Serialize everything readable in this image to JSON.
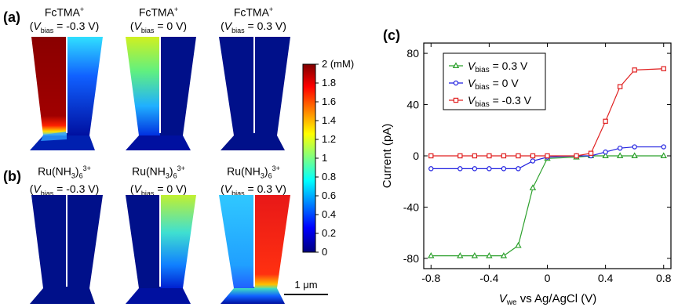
{
  "panels": {
    "a": {
      "label": "(a)",
      "species_base": "FcTMA",
      "species_sup": "+"
    },
    "b": {
      "label": "(b)",
      "species_base": "Ru(NH",
      "species_sub": "3",
      "species_close": ")",
      "species_sub2": "6",
      "species_sup": "3+"
    },
    "c": {
      "label": "(c)"
    }
  },
  "map_columns": [
    {
      "bias_var": "V",
      "bias_sub": "bias",
      "bias_value": " = -0.3 V)"
    },
    {
      "bias_var": "V",
      "bias_sub": "bias",
      "bias_value": " = 0 V)"
    },
    {
      "bias_var": "V",
      "bias_sub": "bias",
      "bias_value": " = 0.3 V)"
    }
  ],
  "colorbar": {
    "unit_label": "(mM)",
    "ticks": [
      "2",
      "1.8",
      "1.6",
      "1.4",
      "1.2",
      "1",
      "0.8",
      "0.6",
      "0.4",
      "0.2",
      "0"
    ],
    "colors": [
      "#7f0000",
      "#ff0000",
      "#ffff00",
      "#00ffff",
      "#0000ff",
      "#00007f"
    ]
  },
  "scale_bar": {
    "label": "1 μm"
  },
  "chart_data": {
    "type": "line",
    "title": "",
    "xlabel_var": "V",
    "xlabel_sub": "we",
    "xlabel_rest": " vs Ag/AgCl (V)",
    "ylabel": "Current (pA)",
    "xlim": [
      -0.85,
      0.85
    ],
    "ylim": [
      -88,
      88
    ],
    "xticks": [
      -0.8,
      -0.4,
      0,
      0.4,
      0.8
    ],
    "xtick_labels": [
      "-0.8",
      "-0.4",
      "0",
      "0.4",
      "0.8"
    ],
    "yticks": [
      -80,
      -40,
      0,
      40,
      80
    ],
    "ytick_labels": [
      "-80",
      "-40",
      "0",
      "40",
      "80"
    ],
    "legend_position": "top-left",
    "x": [
      -0.8,
      -0.6,
      -0.5,
      -0.4,
      -0.3,
      -0.2,
      -0.1,
      0,
      0.2,
      0.3,
      0.4,
      0.5,
      0.6,
      0.8
    ],
    "series": [
      {
        "name_var": "V",
        "name_sub": "bias",
        "name_rest": " = 0.3 V",
        "color": "#2ca02c",
        "marker": "triangle",
        "values": [
          -78,
          -78,
          -78,
          -78,
          -78,
          -70,
          -25,
          -2,
          -1,
          0,
          0,
          0,
          0,
          0
        ]
      },
      {
        "name_var": "V",
        "name_sub": "bias",
        "name_rest": " = 0 V",
        "color": "#1f1fe0",
        "marker": "circle",
        "values": [
          -10,
          -10,
          -10,
          -10,
          -10,
          -10,
          -4,
          -1,
          0,
          0,
          3,
          6,
          7,
          7
        ]
      },
      {
        "name_var": "V",
        "name_sub": "bias",
        "name_rest": " = -0.3 V",
        "color": "#e02020",
        "marker": "square",
        "values": [
          0,
          0,
          0,
          0,
          0,
          0,
          0,
          0,
          0,
          2,
          27,
          54,
          67,
          68
        ]
      }
    ]
  }
}
